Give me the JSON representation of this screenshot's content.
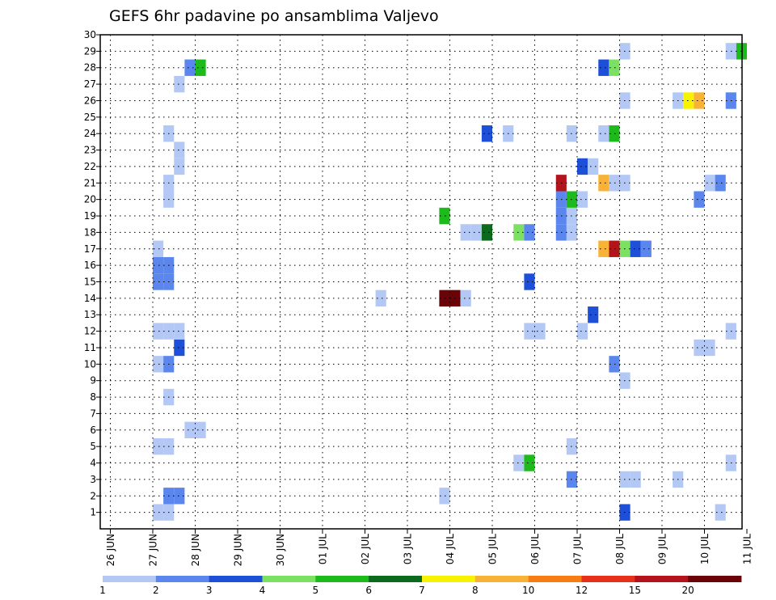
{
  "chart_data": {
    "type": "heatmap",
    "title": "GEFS 6hr padavine po ansamblima Valjevo",
    "xlabel": "",
    "ylabel": "",
    "x_tick_labels": [
      "26 JUN",
      "27 JUN",
      "28 JUN",
      "29 JUN",
      "30 JUN",
      "01 JUL",
      "02 JUL",
      "03 JUL",
      "04 JUL",
      "05 JUL",
      "06 JUL",
      "07 JUL",
      "08 JUL",
      "09 JUL",
      "10 JUL",
      "11 JUL"
    ],
    "y_tick_labels": [
      "1",
      "2",
      "3",
      "4",
      "5",
      "6",
      "7",
      "8",
      "9",
      "10",
      "11",
      "12",
      "13",
      "14",
      "15",
      "16",
      "17",
      "18",
      "19",
      "20",
      "21",
      "22",
      "23",
      "24",
      "25",
      "26",
      "27",
      "28",
      "29",
      "30"
    ],
    "ylim": [
      0,
      30
    ],
    "grid": true,
    "grid_style": "dotted",
    "time_step_hours": 6,
    "legend": {
      "placement": "bottom",
      "labels": [
        "1",
        "2",
        "3",
        "4",
        "5",
        "6",
        "7",
        "8",
        "10",
        "12",
        "15",
        "20"
      ],
      "colors": [
        "#b3c8f5",
        "#5a86ee",
        "#1d4fd8",
        "#7ce163",
        "#1cba1a",
        "#0b6a1b",
        "#f6f200",
        "#f8b336",
        "#f77c12",
        "#e5301a",
        "#b3141c",
        "#6b0408"
      ]
    },
    "cells": [
      {
        "member": 1,
        "time": "27 JUN 00Z",
        "value": 1.5
      },
      {
        "member": 1,
        "time": "27 JUN 06Z",
        "value": 1.5
      },
      {
        "member": 2,
        "time": "27 JUN 06Z",
        "value": 2.5
      },
      {
        "member": 2,
        "time": "27 JUN 12Z",
        "value": 2.5
      },
      {
        "member": 5,
        "time": "27 JUN 00Z",
        "value": 1.5
      },
      {
        "member": 5,
        "time": "27 JUN 06Z",
        "value": 1.5
      },
      {
        "member": 6,
        "time": "27 JUN 18Z",
        "value": 1.5
      },
      {
        "member": 6,
        "time": "28 JUN 00Z",
        "value": 1.5
      },
      {
        "member": 8,
        "time": "27 JUN 06Z",
        "value": 1.5
      },
      {
        "member": 10,
        "time": "27 JUN 00Z",
        "value": 1.5
      },
      {
        "member": 10,
        "time": "27 JUN 06Z",
        "value": 2.5
      },
      {
        "member": 11,
        "time": "27 JUN 12Z",
        "value": 3.5
      },
      {
        "member": 12,
        "time": "27 JUN 00Z",
        "value": 1.5
      },
      {
        "member": 12,
        "time": "27 JUN 06Z",
        "value": 1.5
      },
      {
        "member": 12,
        "time": "27 JUN 12Z",
        "value": 1.5
      },
      {
        "member": 15,
        "time": "27 JUN 00Z",
        "value": 2.5
      },
      {
        "member": 15,
        "time": "27 JUN 06Z",
        "value": 2.5
      },
      {
        "member": 16,
        "time": "27 JUN 00Z",
        "value": 2.5
      },
      {
        "member": 16,
        "time": "27 JUN 06Z",
        "value": 2.5
      },
      {
        "member": 17,
        "time": "27 JUN 00Z",
        "value": 1.5
      },
      {
        "member": 20,
        "time": "27 JUN 06Z",
        "value": 1.5
      },
      {
        "member": 21,
        "time": "27 JUN 06Z",
        "value": 1.5
      },
      {
        "member": 22,
        "time": "27 JUN 12Z",
        "value": 1.5
      },
      {
        "member": 23,
        "time": "27 JUN 12Z",
        "value": 1.5
      },
      {
        "member": 24,
        "time": "27 JUN 06Z",
        "value": 1.5
      },
      {
        "member": 27,
        "time": "27 JUN 12Z",
        "value": 1.5
      },
      {
        "member": 28,
        "time": "27 JUN 18Z",
        "value": 2.5
      },
      {
        "member": 28,
        "time": "28 JUN 00Z",
        "value": 5.5
      },
      {
        "member": 14,
        "time": "02 JUL 06Z",
        "value": 1.5
      },
      {
        "member": 14,
        "time": "03 JUL 18Z",
        "value": 25.0
      },
      {
        "member": 14,
        "time": "04 JUL 00Z",
        "value": 25.0
      },
      {
        "member": 14,
        "time": "04 JUL 06Z",
        "value": 1.5
      },
      {
        "member": 2,
        "time": "03 JUL 18Z",
        "value": 1.5
      },
      {
        "member": 19,
        "time": "03 JUL 18Z",
        "value": 5.5
      },
      {
        "member": 18,
        "time": "04 JUL 06Z",
        "value": 1.5
      },
      {
        "member": 18,
        "time": "04 JUL 12Z",
        "value": 1.5
      },
      {
        "member": 18,
        "time": "04 JUL 18Z",
        "value": 6.5
      },
      {
        "member": 24,
        "time": "04 JUL 18Z",
        "value": 3.5
      },
      {
        "member": 24,
        "time": "05 JUL 06Z",
        "value": 1.5
      },
      {
        "member": 4,
        "time": "05 JUL 12Z",
        "value": 1.5
      },
      {
        "member": 4,
        "time": "05 JUL 18Z",
        "value": 5.5
      },
      {
        "member": 18,
        "time": "05 JUL 12Z",
        "value": 4.5
      },
      {
        "member": 18,
        "time": "05 JUL 18Z",
        "value": 2.5
      },
      {
        "member": 15,
        "time": "05 JUL 18Z",
        "value": 3.5
      },
      {
        "member": 12,
        "time": "05 JUL 18Z",
        "value": 1.5
      },
      {
        "member": 12,
        "time": "06 JUL 00Z",
        "value": 1.5
      },
      {
        "member": 18,
        "time": "06 JUL 12Z",
        "value": 2.5
      },
      {
        "member": 18,
        "time": "06 JUL 18Z",
        "value": 1.5
      },
      {
        "member": 19,
        "time": "06 JUL 12Z",
        "value": 2.5
      },
      {
        "member": 19,
        "time": "06 JUL 18Z",
        "value": 1.5
      },
      {
        "member": 20,
        "time": "06 JUL 12Z",
        "value": 2.5
      },
      {
        "member": 20,
        "time": "06 JUL 18Z",
        "value": 5.5
      },
      {
        "member": 20,
        "time": "07 JUL 00Z",
        "value": 1.5
      },
      {
        "member": 21,
        "time": "06 JUL 12Z",
        "value": 17.0
      },
      {
        "member": 3,
        "time": "06 JUL 18Z",
        "value": 2.5
      },
      {
        "member": 5,
        "time": "06 JUL 18Z",
        "value": 1.5
      },
      {
        "member": 24,
        "time": "06 JUL 18Z",
        "value": 1.5
      },
      {
        "member": 12,
        "time": "07 JUL 00Z",
        "value": 1.5
      },
      {
        "member": 22,
        "time": "07 JUL 00Z",
        "value": 3.5
      },
      {
        "member": 22,
        "time": "07 JUL 06Z",
        "value": 1.5
      },
      {
        "member": 13,
        "time": "07 JUL 06Z",
        "value": 3.5
      },
      {
        "member": 17,
        "time": "07 JUL 12Z",
        "value": 9.0
      },
      {
        "member": 17,
        "time": "07 JUL 18Z",
        "value": 16.0
      },
      {
        "member": 17,
        "time": "08 JUL 00Z",
        "value": 4.5
      },
      {
        "member": 17,
        "time": "08 JUL 06Z",
        "value": 3.5
      },
      {
        "member": 17,
        "time": "08 JUL 12Z",
        "value": 2.5
      },
      {
        "member": 21,
        "time": "07 JUL 12Z",
        "value": 9.0
      },
      {
        "member": 21,
        "time": "07 JUL 18Z",
        "value": 1.5
      },
      {
        "member": 21,
        "time": "08 JUL 00Z",
        "value": 1.5
      },
      {
        "member": 24,
        "time": "07 JUL 12Z",
        "value": 1.5
      },
      {
        "member": 24,
        "time": "07 JUL 18Z",
        "value": 5.5
      },
      {
        "member": 28,
        "time": "07 JUL 12Z",
        "value": 3.5
      },
      {
        "member": 28,
        "time": "07 JUL 18Z",
        "value": 4.5
      },
      {
        "member": 10,
        "time": "07 JUL 18Z",
        "value": 2.5
      },
      {
        "member": 9,
        "time": "08 JUL 00Z",
        "value": 1.5
      },
      {
        "member": 3,
        "time": "08 JUL 00Z",
        "value": 1.5
      },
      {
        "member": 3,
        "time": "08 JUL 06Z",
        "value": 1.5
      },
      {
        "member": 1,
        "time": "08 JUL 00Z",
        "value": 3.5
      },
      {
        "member": 26,
        "time": "08 JUL 00Z",
        "value": 1.5
      },
      {
        "member": 29,
        "time": "08 JUL 00Z",
        "value": 1.5
      },
      {
        "member": 3,
        "time": "09 JUL 06Z",
        "value": 1.5
      },
      {
        "member": 26,
        "time": "09 JUL 06Z",
        "value": 1.5
      },
      {
        "member": 26,
        "time": "09 JUL 12Z",
        "value": 7.5
      },
      {
        "member": 26,
        "time": "09 JUL 18Z",
        "value": 9.0
      },
      {
        "member": 11,
        "time": "09 JUL 18Z",
        "value": 1.5
      },
      {
        "member": 11,
        "time": "10 JUL 00Z",
        "value": 1.5
      },
      {
        "member": 20,
        "time": "09 JUL 18Z",
        "value": 2.5
      },
      {
        "member": 21,
        "time": "10 JUL 00Z",
        "value": 1.5
      },
      {
        "member": 21,
        "time": "10 JUL 06Z",
        "value": 2.5
      },
      {
        "member": 1,
        "time": "10 JUL 06Z",
        "value": 1.5
      },
      {
        "member": 4,
        "time": "10 JUL 12Z",
        "value": 1.5
      },
      {
        "member": 12,
        "time": "10 JUL 12Z",
        "value": 1.5
      },
      {
        "member": 26,
        "time": "10 JUL 12Z",
        "value": 2.5
      },
      {
        "member": 29,
        "time": "10 JUL 12Z",
        "value": 1.5
      },
      {
        "member": 29,
        "time": "10 JUL 18Z",
        "value": 5.5
      }
    ]
  }
}
